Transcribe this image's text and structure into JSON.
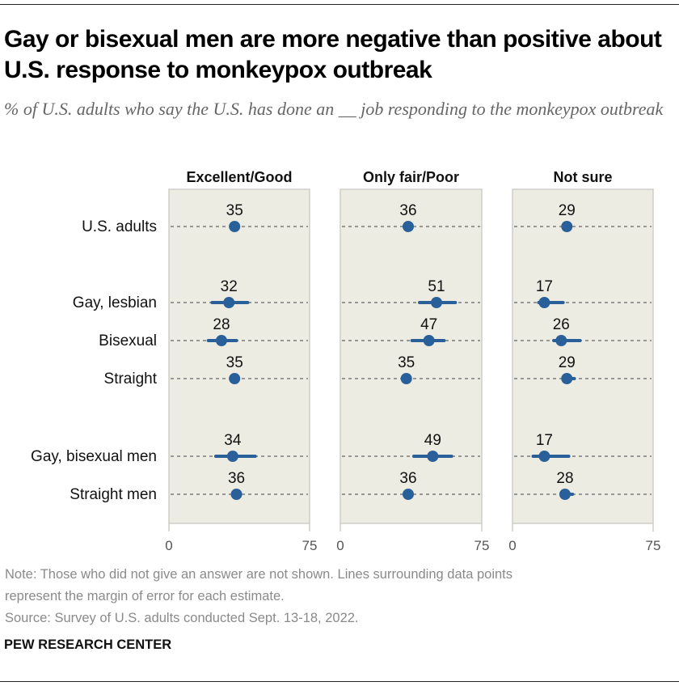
{
  "header": {
    "title": "Gay or bisexual men are more negative than positive about U.S. response to monkeypox outbreak",
    "subtitle": "% of U.S. adults who say the U.S. has done an __ job responding to the monkeypox outbreak"
  },
  "colors": {
    "dot": "#2a6099",
    "panel_bg": "#edece2",
    "panel_border": "#cfcfc8",
    "guide": "#7a7a7a",
    "text": "#111111",
    "axis_text": "#555555"
  },
  "chart_data": {
    "type": "dot-plot",
    "title": "Gay or bisexual men are more negative than positive about U.S. response to monkeypox outbreak",
    "subtitle": "% of U.S. adults who say the U.S. has done an __ job responding to the monkeypox outbreak",
    "xlim": [
      0,
      75
    ],
    "x_ticks": [
      "0",
      "75"
    ],
    "categories": [
      "U.S. adults",
      "Gay, lesbian",
      "Bisexual",
      "Straight",
      "Gay, bisexual men",
      "Straight men"
    ],
    "category_groups": [
      [
        0
      ],
      [
        1,
        2,
        3
      ],
      [
        4,
        5
      ]
    ],
    "series": [
      {
        "name": "Excellent/Good",
        "values": [
          35,
          32,
          28,
          35,
          34,
          36
        ],
        "moe_low": [
          34,
          23,
          21,
          34,
          25,
          35
        ],
        "moe_high": [
          36,
          42,
          36,
          36,
          46,
          37
        ]
      },
      {
        "name": "Only fair/Poor",
        "values": [
          36,
          51,
          47,
          35,
          49,
          36
        ],
        "moe_low": [
          35,
          42,
          38,
          34,
          39,
          35
        ],
        "moe_high": [
          37,
          61,
          55,
          36,
          59,
          37
        ]
      },
      {
        "name": "Not sure",
        "values": [
          29,
          17,
          26,
          29,
          17,
          28
        ],
        "moe_low": [
          28,
          14,
          22,
          28,
          11,
          27
        ],
        "moe_high": [
          30,
          27,
          36,
          33,
          30,
          32
        ]
      }
    ]
  },
  "footer": {
    "note_line1": "Note: Those who did not give an answer are not shown. Lines surrounding data points",
    "note_line2": "represent the margin of error for each estimate.",
    "source": "Source: Survey of U.S. adults conducted Sept. 13-18, 2022.",
    "brand": "PEW RESEARCH CENTER"
  }
}
